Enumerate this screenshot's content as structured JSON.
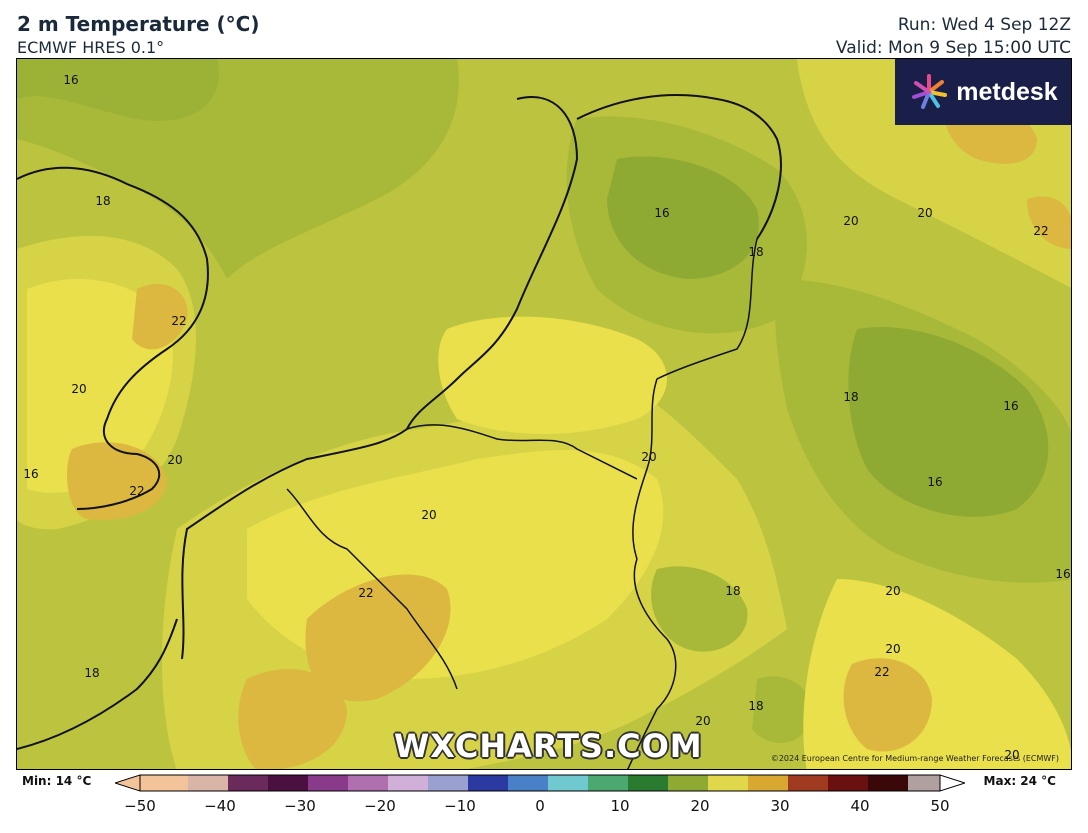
{
  "header": {
    "title": "2 m Temperature (°C)",
    "model": "ECMWF HRES 0.1°",
    "run": "Run: Wed 4 Sep 12Z",
    "valid": "Valid: Mon 9 Sep 15:00 UTC"
  },
  "logo": {
    "text": "metdesk",
    "icon": "starburst-icon"
  },
  "watermark": "WXCHARTS.COM",
  "copyright": "©2024 European Centre for Medium-range Weather Forecasts (ECMWF)",
  "contour_labels": [
    "16",
    "18",
    "22",
    "20",
    "22",
    "20",
    "16",
    "16",
    "18",
    "20",
    "22",
    "18",
    "16",
    "16",
    "20",
    "20",
    "20",
    "22",
    "18",
    "18",
    "20",
    "20",
    "22",
    "18",
    "20",
    "20",
    "16"
  ],
  "colorbar": {
    "min_label": "Min: 14 °C",
    "max_label": "Max: 24 °C",
    "ticks": [
      "−50",
      "−40",
      "−30",
      "−20",
      "−10",
      "0",
      "10",
      "20",
      "30",
      "40",
      "50"
    ],
    "range": [
      -50,
      50
    ]
  },
  "colors": {
    "green_16": "#8faa33",
    "green_18": "#a8b93a",
    "olive_19": "#bcc43f",
    "yellow_20": "#d6d347",
    "yellow_21": "#e9e04c",
    "orange_22": "#dcb840"
  }
}
